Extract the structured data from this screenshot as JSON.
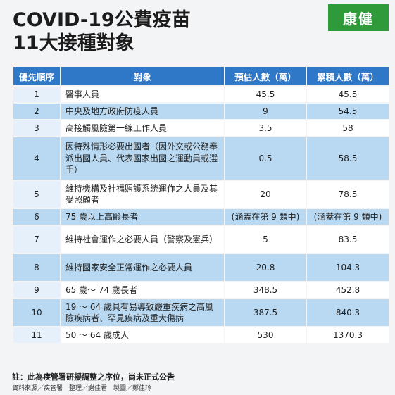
{
  "title": {
    "line1": "COVID-19公費疫苗",
    "line2": "11大接種對象"
  },
  "logo": "康健",
  "table": {
    "headers": [
      "優先順序",
      "對象",
      "預估人數（萬）",
      "累積人數（萬）"
    ],
    "rows": [
      {
        "rank": "1",
        "target": "醫事人員",
        "est": "45.5",
        "cum": "45.5"
      },
      {
        "rank": "2",
        "target": "中央及地方政府防疫人員",
        "est": "9",
        "cum": "54.5"
      },
      {
        "rank": "3",
        "target": "高接觸風險第一線工作人員",
        "est": "3.5",
        "cum": "58"
      },
      {
        "rank": "4",
        "target": "因特殊情形必要出國者（因外交或公務奉派出國人員、代表國家出國之運動員或選手）",
        "est": "0.5",
        "cum": "58.5"
      },
      {
        "rank": "5",
        "target": "維持機構及社福照護系統運作之人員及其受照顧者",
        "est": "20",
        "cum": "78.5"
      },
      {
        "rank": "6",
        "target": "75 歲以上高齡長者",
        "est": "(涵蓋在第 9 類中)",
        "cum": "(涵蓋在第 9 類中)"
      },
      {
        "rank": "7",
        "target": "維持社會運作之必要人員（警察及憲兵）",
        "est": "5",
        "cum": "83.5"
      },
      {
        "rank": "8",
        "target": "維持國家安全正常運作之必要人員",
        "est": "20.8",
        "cum": "104.3"
      },
      {
        "rank": "9",
        "target": "65 歲～ 74 歲長者",
        "est": "348.5",
        "cum": "452.8"
      },
      {
        "rank": "10",
        "target": "19 ～ 64 歲具有易導致嚴重疾病之高風險疾病者、罕見疾病及重大傷病",
        "est": "387.5",
        "cum": "840.3"
      },
      {
        "rank": "11",
        "target": "50 ～ 64 歲成人",
        "est": "530",
        "cum": "1370.3"
      }
    ]
  },
  "footer": {
    "note": "註：此為疾管署研擬調整之序位，尚未正式公告",
    "credits": "資料來源／疾管署　整理／謝佳君　製圖／鄭佳玲"
  }
}
